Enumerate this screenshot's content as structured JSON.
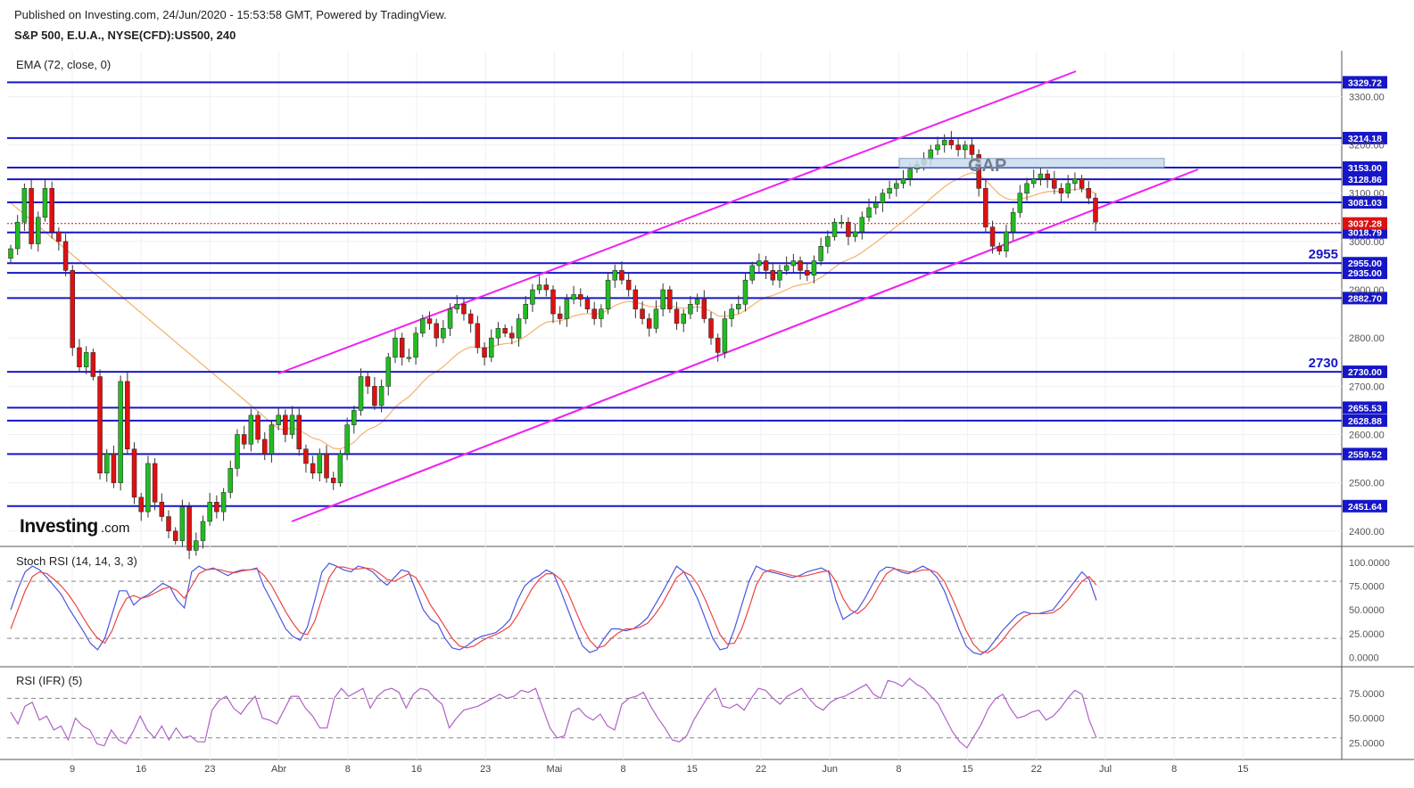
{
  "header": {
    "published": "Published on Investing.com, 24/Jun/2020 - 15:53:58 GMT, Powered by TradingView.",
    "symbol": "S&P 500, E.U.A., NYSE(CFD):US500, 240"
  },
  "colors": {
    "level_line": "#1616c8",
    "channel": "#ee22ee",
    "ema": "#f2b36b",
    "up": "#22bb22",
    "down": "#dd1111",
    "stoch_k": "#4a55e0",
    "stoch_d": "#ee4444",
    "rsi": "#b060c8",
    "last_price": "#dd1111"
  },
  "chart_data": [
    {
      "type": "candlestick",
      "title": "EMA (72, close, 0)",
      "ylim": [
        2370,
        3395
      ],
      "yticks": [
        2400,
        2500,
        2600,
        2700,
        2800,
        2900,
        3000,
        3100,
        3200,
        3300
      ],
      "ytick_labels": [
        "2400.00",
        "2500.00",
        "2600.00",
        "2700.00",
        "2800.00",
        "2900.00",
        "3000.00",
        "3100.00",
        "3200.00",
        "3300.00"
      ],
      "levels": [
        {
          "value": 3329.72,
          "label": "3329.72"
        },
        {
          "value": 3214.18,
          "label": "3214.18"
        },
        {
          "value": 3153.0,
          "label": "3153.00"
        },
        {
          "value": 3128.86,
          "label": "3128.86"
        },
        {
          "value": 3081.03,
          "label": "3081.03"
        },
        {
          "value": 3018.79,
          "label": "3018.79"
        },
        {
          "value": 2955.0,
          "label": "2955.00"
        },
        {
          "value": 2935.0,
          "label": "2935.00"
        },
        {
          "value": 2882.7,
          "label": "2882.70"
        },
        {
          "value": 2730.0,
          "label": "2730.00"
        },
        {
          "value": 2655.53,
          "label": "2655.53"
        },
        {
          "value": 2628.88,
          "label": "2628.88"
        },
        {
          "value": 2559.52,
          "label": "2559.52"
        },
        {
          "value": 2451.64,
          "label": "2451.64"
        }
      ],
      "last_price": {
        "value": 3037.28,
        "label": "3037.28"
      },
      "annotations": [
        {
          "text": "2955",
          "value": 2955
        },
        {
          "text": "2730",
          "value": 2730
        },
        {
          "text": "GAP"
        }
      ],
      "x_labels": [
        "9",
        "16",
        "23",
        "Abr",
        "8",
        "16",
        "23",
        "Mai",
        "8",
        "15",
        "22",
        "Jun",
        "8",
        "15",
        "22",
        "Jul",
        "8",
        "15"
      ],
      "close_series": [
        2985,
        3040,
        3110,
        2995,
        3050,
        3110,
        3020,
        3000,
        2940,
        2780,
        2740,
        2770,
        2720,
        2520,
        2560,
        2500,
        2710,
        2570,
        2470,
        2440,
        2540,
        2460,
        2430,
        2400,
        2380,
        2450,
        2360,
        2380,
        2420,
        2460,
        2440,
        2480,
        2530,
        2600,
        2580,
        2640,
        2590,
        2560,
        2620,
        2640,
        2600,
        2640,
        2570,
        2540,
        2520,
        2560,
        2510,
        2500,
        2560,
        2620,
        2650,
        2720,
        2700,
        2660,
        2700,
        2760,
        2800,
        2760,
        2760,
        2810,
        2840,
        2830,
        2800,
        2820,
        2860,
        2870,
        2850,
        2830,
        2780,
        2760,
        2800,
        2820,
        2810,
        2800,
        2840,
        2870,
        2900,
        2910,
        2900,
        2850,
        2840,
        2880,
        2890,
        2880,
        2860,
        2840,
        2860,
        2920,
        2940,
        2920,
        2900,
        2860,
        2840,
        2820,
        2860,
        2900,
        2860,
        2830,
        2850,
        2870,
        2880,
        2840,
        2800,
        2770,
        2840,
        2860,
        2870,
        2920,
        2950,
        2960,
        2940,
        2920,
        2940,
        2950,
        2960,
        2940,
        2930,
        2960,
        2990,
        3010,
        3040,
        3040,
        3010,
        3020,
        3050,
        3070,
        3080,
        3100,
        3110,
        3120,
        3130,
        3150,
        3160,
        3170,
        3190,
        3200,
        3210,
        3200,
        3190,
        3200,
        3180,
        3110,
        3030,
        2990,
        2980,
        3020,
        3060,
        3100,
        3120,
        3130,
        3140,
        3130,
        3110,
        3100,
        3120,
        3130,
        3110,
        3090,
        3040
      ]
    },
    {
      "type": "line",
      "title": "Stoch RSI (14, 14, 3, 3)",
      "ylim": [
        -8,
        112
      ],
      "yticks": [
        0,
        25,
        50,
        75,
        100
      ],
      "ytick_labels": [
        "0.0000",
        "25.0000",
        "50.0000",
        "75.0000",
        "100.0000"
      ],
      "bands": [
        80,
        20
      ],
      "series": [
        {
          "key": "k",
          "values": [
            50,
            72,
            90,
            96,
            92,
            84,
            75,
            66,
            52,
            40,
            28,
            15,
            8,
            20,
            45,
            70,
            70,
            55,
            62,
            66,
            72,
            78,
            74,
            60,
            52,
            90,
            96,
            92,
            94,
            90,
            86,
            90,
            92,
            92,
            94,
            74,
            60,
            45,
            30,
            22,
            18,
            32,
            60,
            90,
            99,
            96,
            92,
            90,
            96,
            94,
            90,
            82,
            76,
            84,
            92,
            90,
            70,
            50,
            40,
            35,
            20,
            10,
            8,
            12,
            18,
            22,
            24,
            26,
            32,
            40,
            60,
            75,
            82,
            86,
            92,
            88,
            70,
            50,
            30,
            12,
            5,
            8,
            20,
            30,
            30,
            28,
            30,
            35,
            42,
            55,
            68,
            82,
            96,
            90,
            76,
            60,
            40,
            20,
            8,
            10,
            30,
            55,
            80,
            96,
            92,
            90,
            88,
            86,
            84,
            86,
            90,
            92,
            94,
            90,
            60,
            40,
            45,
            50,
            62,
            76,
            90,
            95,
            94,
            90,
            88,
            92,
            96,
            92,
            84,
            70,
            50,
            30,
            12,
            5,
            3,
            8,
            18,
            28,
            36,
            44,
            48,
            46,
            46,
            48,
            50,
            60,
            70,
            80,
            90,
            82,
            60
          ]
        },
        {
          "key": "d",
          "values": [
            30,
            50,
            70,
            85,
            90,
            88,
            82,
            75,
            66,
            55,
            42,
            30,
            20,
            15,
            28,
            48,
            62,
            65,
            62,
            64,
            68,
            72,
            74,
            70,
            62,
            75,
            88,
            92,
            93,
            92,
            90,
            89,
            91,
            92,
            93,
            86,
            76,
            62,
            48,
            36,
            26,
            24,
            38,
            62,
            84,
            95,
            95,
            93,
            93,
            94,
            93,
            88,
            82,
            80,
            84,
            88,
            84,
            70,
            55,
            44,
            32,
            20,
            12,
            10,
            12,
            17,
            21,
            24,
            28,
            33,
            44,
            58,
            72,
            82,
            88,
            88,
            82,
            68,
            50,
            32,
            18,
            10,
            12,
            20,
            26,
            30,
            30,
            32,
            36,
            45,
            56,
            70,
            84,
            90,
            86,
            76,
            60,
            42,
            24,
            14,
            15,
            30,
            52,
            76,
            89,
            92,
            90,
            88,
            86,
            85,
            86,
            88,
            90,
            91,
            80,
            62,
            50,
            46,
            52,
            62,
            76,
            88,
            93,
            92,
            90,
            90,
            92,
            92,
            89,
            80,
            64,
            46,
            28,
            14,
            6,
            5,
            10,
            18,
            28,
            36,
            43,
            46,
            46,
            46,
            47,
            52,
            60,
            70,
            80,
            85,
            76
          ]
        }
      ]
    },
    {
      "type": "line",
      "title": "RSI (IFR) (5)",
      "ylim": [
        10,
        100
      ],
      "yticks": [
        25,
        50,
        75
      ],
      "ytick_labels": [
        "25.0000",
        "50.0000",
        "75.0000"
      ],
      "bands": [
        70,
        30
      ],
      "series": [
        {
          "key": "rsi",
          "values": [
            56,
            44,
            62,
            66,
            48,
            52,
            38,
            42,
            28,
            50,
            42,
            38,
            24,
            22,
            38,
            28,
            24,
            36,
            52,
            38,
            30,
            42,
            28,
            40,
            30,
            32,
            26,
            26,
            58,
            68,
            72,
            60,
            54,
            64,
            72,
            50,
            48,
            44,
            58,
            72,
            72,
            60,
            52,
            40,
            40,
            70,
            80,
            72,
            76,
            80,
            60,
            72,
            78,
            80,
            76,
            60,
            74,
            80,
            78,
            70,
            64,
            40,
            50,
            58,
            60,
            62,
            66,
            70,
            74,
            70,
            72,
            78,
            76,
            80,
            60,
            40,
            30,
            32,
            56,
            60,
            52,
            48,
            54,
            42,
            38,
            64,
            70,
            72,
            76,
            62,
            50,
            40,
            28,
            26,
            32,
            48,
            60,
            72,
            80,
            62,
            60,
            64,
            58,
            70,
            80,
            78,
            70,
            64,
            72,
            76,
            80,
            70,
            62,
            58,
            66,
            70,
            72,
            76,
            80,
            84,
            74,
            70,
            88,
            86,
            82,
            90,
            84,
            80,
            72,
            64,
            50,
            36,
            26,
            20,
            32,
            44,
            60,
            70,
            74,
            60,
            50,
            52,
            56,
            58,
            48,
            52,
            60,
            70,
            78,
            74,
            48,
            30
          ]
        }
      ]
    }
  ],
  "branding": {
    "logo_main": "Investing",
    "logo_suffix": ".com"
  }
}
